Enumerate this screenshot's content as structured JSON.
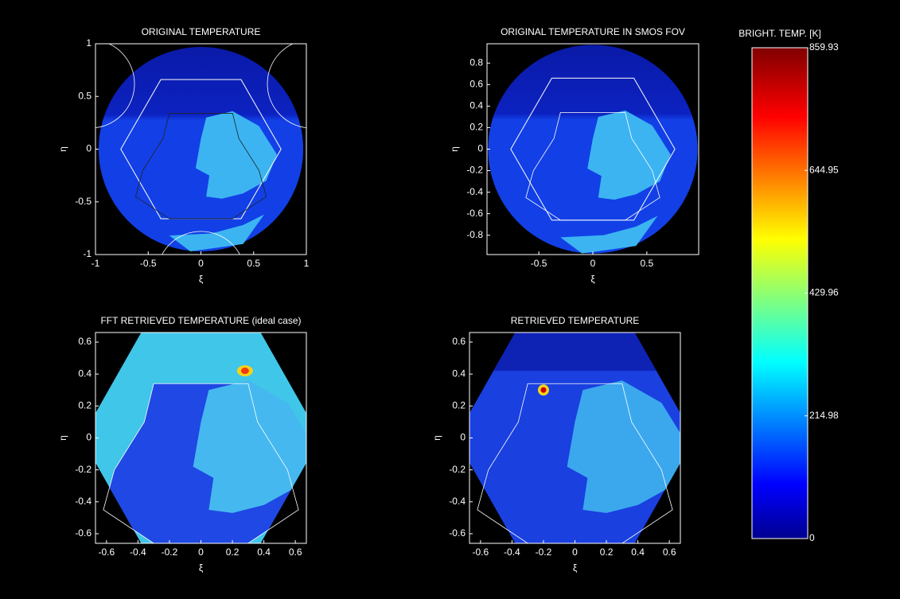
{
  "chart_data": [
    {
      "type": "image",
      "title": "ORIGINAL TEMPERATURE",
      "x_label": "ξ",
      "y_label": "η",
      "xlim": [
        -1,
        1
      ],
      "ylim": [
        -1,
        1
      ],
      "xticks": [
        -1,
        -0.5,
        0,
        0.5,
        1
      ],
      "yticks": [
        -1,
        -0.5,
        0,
        0.5,
        1
      ]
    },
    {
      "type": "image",
      "title": "ORIGINAL TEMPERATURE IN SMOS FOV",
      "x_label": "ξ",
      "y_label": "η",
      "xlim": [
        -0.98,
        0.98
      ],
      "ylim": [
        -0.98,
        0.98
      ],
      "xticks": [
        -0.5,
        0,
        0.5
      ],
      "yticks": [
        -0.8,
        -0.6,
        -0.4,
        -0.2,
        0,
        0.2,
        0.4,
        0.6,
        0.8
      ]
    },
    {
      "type": "image",
      "title": "FFT RETRIEVED TEMPERATURE (ideal case)",
      "x_label": "ξ",
      "y_label": "η",
      "xlim": [
        -0.67,
        0.67
      ],
      "ylim": [
        -0.66,
        0.66
      ],
      "xticks": [
        -0.6,
        -0.4,
        -0.2,
        0,
        0.2,
        0.4,
        0.6
      ],
      "yticks": [
        -0.6,
        -0.4,
        -0.2,
        0,
        0.2,
        0.4,
        0.6
      ]
    },
    {
      "type": "image",
      "title": "RETRIEVED TEMPERATURE",
      "x_label": "ξ",
      "y_label": "η",
      "xlim": [
        -0.67,
        0.67
      ],
      "ylim": [
        -0.66,
        0.66
      ],
      "xticks": [
        -0.6,
        -0.4,
        -0.2,
        0,
        0.2,
        0.4,
        0.6
      ],
      "yticks": [
        -0.6,
        -0.4,
        -0.2,
        0,
        0.2,
        0.4,
        0.6
      ]
    },
    {
      "type": "colorbar",
      "title": "BRIGHT. TEMP. [K]",
      "ylim": [
        0,
        859.93
      ],
      "yticks": [
        0,
        214.98,
        429.96,
        644.95,
        859.93
      ]
    }
  ]
}
